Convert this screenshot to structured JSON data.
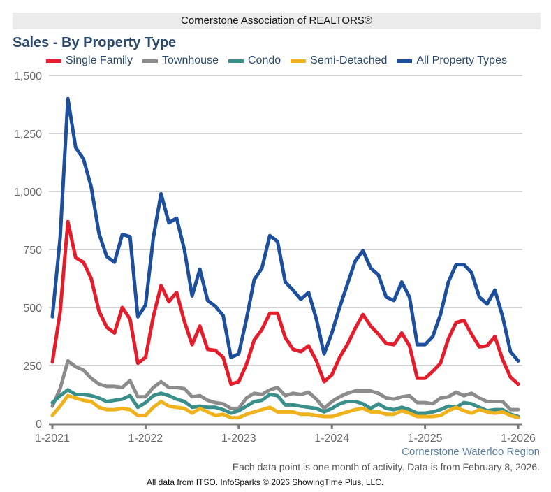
{
  "banner": "Cornerstone Association of REALTORS®",
  "region_label": "Cornerstone Waterloo Region",
  "note": "Each data point is one month of activity. Data is from February 8, 2026.",
  "credit": "All data from ITSO. InfoSparks © 2026 ShowingTime Plus, LLC.",
  "chart_data": {
    "type": "line",
    "title": "Sales - By Property Type",
    "xlabel": "",
    "ylabel": "",
    "ylim": [
      0,
      1500
    ],
    "yticks": [
      0,
      250,
      500,
      750,
      1000,
      1250,
      1500
    ],
    "ytick_labels": [
      "0",
      "250",
      "500",
      "750",
      "1,000",
      "1,250",
      "1,500"
    ],
    "xtick_labels": [
      "1-2021",
      "1-2022",
      "1-2023",
      "1-2024",
      "1-2025",
      "1-2026"
    ],
    "x_start": "1-2021",
    "x_end": "1-2026",
    "grid": true,
    "legend_position": "top",
    "series": [
      {
        "name": "Single Family",
        "color": "#e31d2b",
        "values": [
          265,
          480,
          870,
          715,
          695,
          625,
          485,
          415,
          390,
          500,
          450,
          260,
          285,
          460,
          595,
          525,
          565,
          440,
          340,
          420,
          320,
          315,
          285,
          170,
          180,
          255,
          360,
          405,
          475,
          475,
          370,
          320,
          310,
          335,
          270,
          180,
          210,
          285,
          340,
          410,
          470,
          420,
          385,
          345,
          340,
          390,
          335,
          195,
          195,
          225,
          260,
          365,
          435,
          445,
          385,
          330,
          335,
          375,
          275,
          200,
          170
        ]
      },
      {
        "name": "Townhouse",
        "color": "#8c8c8c",
        "values": [
          75,
          150,
          270,
          245,
          230,
          195,
          170,
          160,
          160,
          155,
          185,
          115,
          115,
          155,
          180,
          155,
          155,
          150,
          115,
          120,
          100,
          90,
          85,
          65,
          65,
          110,
          130,
          125,
          145,
          155,
          120,
          130,
          125,
          135,
          105,
          65,
          95,
          115,
          130,
          140,
          140,
          140,
          130,
          110,
          105,
          115,
          120,
          90,
          90,
          85,
          110,
          115,
          135,
          120,
          130,
          110,
          95,
          95,
          95,
          60,
          60
        ]
      },
      {
        "name": "Condo",
        "color": "#3a8f8b",
        "values": [
          90,
          120,
          145,
          125,
          125,
          120,
          110,
          95,
          100,
          105,
          120,
          70,
          90,
          120,
          130,
          120,
          105,
          95,
          70,
          75,
          70,
          70,
          60,
          45,
          55,
          75,
          95,
          100,
          125,
          120,
          80,
          80,
          75,
          70,
          65,
          50,
          65,
          85,
          95,
          95,
          85,
          65,
          85,
          65,
          60,
          70,
          60,
          45,
          45,
          50,
          60,
          75,
          70,
          90,
          85,
          70,
          55,
          60,
          60,
          40,
          30
        ]
      },
      {
        "name": "Semi-Detached",
        "color": "#f0b21b",
        "values": [
          35,
          75,
          120,
          110,
          100,
          95,
          70,
          60,
          60,
          65,
          60,
          35,
          35,
          70,
          95,
          75,
          70,
          65,
          45,
          65,
          50,
          35,
          40,
          25,
          25,
          40,
          50,
          60,
          70,
          50,
          50,
          50,
          40,
          40,
          35,
          30,
          30,
          40,
          50,
          60,
          65,
          50,
          50,
          40,
          40,
          55,
          45,
          30,
          30,
          30,
          35,
          55,
          70,
          55,
          45,
          60,
          50,
          45,
          50,
          35,
          25
        ]
      },
      {
        "name": "All Property Types",
        "color": "#1d4f9c",
        "values": [
          460,
          800,
          1400,
          1190,
          1140,
          1020,
          820,
          720,
          695,
          815,
          805,
          460,
          510,
          800,
          990,
          865,
          885,
          750,
          550,
          665,
          530,
          505,
          465,
          285,
          300,
          450,
          620,
          670,
          810,
          785,
          610,
          575,
          535,
          565,
          450,
          300,
          390,
          500,
          600,
          700,
          745,
          670,
          640,
          545,
          530,
          610,
          545,
          340,
          340,
          375,
          470,
          610,
          685,
          685,
          650,
          545,
          515,
          575,
          460,
          310,
          270
        ]
      }
    ]
  }
}
